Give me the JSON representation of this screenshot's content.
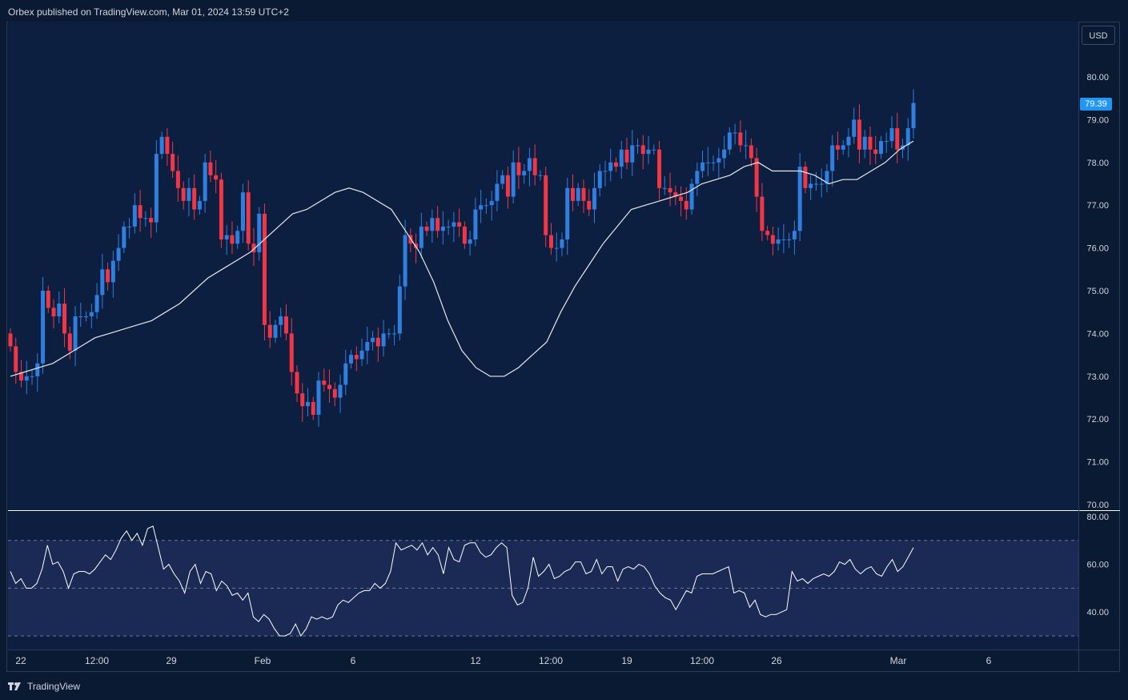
{
  "header": {
    "published": "Orbex published on TradingView.com, Mar 01, 2024 13:59 UTC+2"
  },
  "currency_button": "USD",
  "last_price_label": "79.39",
  "footer": {
    "brand": "TradingView"
  },
  "colors": {
    "up": "#2f7fe0",
    "down": "#f23645",
    "ma": "#e8e8e8",
    "rsi": "#ffffff",
    "background": "#0b1a33",
    "rsi_band": "#1a2a55"
  },
  "chart_data": [
    {
      "type": "candlestick",
      "series_name": "",
      "ylim": [
        70.0,
        80.0
      ],
      "y_ticks": [
        "80.00",
        "79.00",
        "78.00",
        "77.00",
        "76.00",
        "75.00",
        "74.00",
        "73.00",
        "72.00",
        "71.00",
        "70.00"
      ],
      "x_ticks": [
        "22",
        "12:00",
        "29",
        "Feb",
        "6",
        "12",
        "12:00",
        "19",
        "12:00",
        "26",
        "Mar",
        "6"
      ],
      "last_price": 79.39,
      "closes": [
        73.7,
        73.1,
        72.9,
        73.0,
        73.0,
        73.3,
        75.0,
        74.6,
        74.4,
        74.7,
        74.0,
        73.6,
        74.4,
        74.4,
        74.4,
        74.5,
        74.9,
        75.5,
        75.2,
        75.7,
        76.0,
        76.5,
        76.5,
        77.0,
        76.7,
        76.7,
        76.6,
        78.2,
        78.6,
        78.2,
        77.8,
        77.4,
        77.1,
        77.4,
        76.9,
        77.1,
        78.0,
        77.7,
        77.6,
        76.2,
        76.3,
        76.1,
        76.4,
        77.3,
        76.1,
        75.9,
        76.8,
        74.2,
        73.9,
        74.2,
        74.4,
        74.0,
        73.1,
        72.6,
        72.3,
        72.4,
        72.1,
        72.9,
        72.8,
        72.7,
        72.5,
        72.8,
        73.3,
        73.5,
        73.4,
        73.6,
        73.8,
        73.9,
        73.7,
        74.0,
        74.0,
        74.0,
        75.1,
        76.3,
        76.1,
        76.0,
        76.5,
        76.4,
        76.7,
        76.4,
        76.5,
        76.5,
        76.6,
        76.5,
        76.1,
        76.2,
        76.9,
        77.0,
        77.0,
        77.1,
        77.5,
        77.7,
        77.2,
        78.0,
        77.7,
        77.8,
        78.1,
        77.7,
        77.7,
        76.3,
        76.0,
        76.0,
        76.2,
        77.4,
        77.1,
        77.4,
        77.1,
        76.9,
        77.4,
        77.8,
        77.8,
        78.0,
        77.9,
        78.3,
        78.0,
        78.4,
        78.4,
        78.2,
        78.3,
        78.3,
        77.4,
        77.4,
        77.3,
        77.2,
        77.1,
        76.9,
        77.5,
        77.8,
        78.0,
        78.0,
        78.0,
        78.1,
        78.3,
        78.7,
        78.7,
        78.4,
        78.4,
        78.1,
        77.2,
        76.4,
        76.3,
        76.1,
        76.2,
        76.2,
        76.2,
        76.4,
        77.9,
        77.4,
        77.5,
        77.5,
        77.5,
        77.8,
        78.4,
        78.3,
        78.4,
        78.6,
        79.0,
        78.3,
        78.6,
        78.3,
        78.2,
        78.5,
        78.5,
        78.8,
        78.3,
        78.4,
        78.8,
        79.39
      ],
      "ma_type": "moving average",
      "ma": [
        73.0,
        73.1,
        73.2,
        73.3,
        73.5,
        73.7,
        73.9,
        74.0,
        74.1,
        74.2,
        74.3,
        74.5,
        74.7,
        75.0,
        75.3,
        75.5,
        75.7,
        75.9,
        76.2,
        76.5,
        76.8,
        76.9,
        77.1,
        77.3,
        77.4,
        77.3,
        77.1,
        76.9,
        76.4,
        75.9,
        75.2,
        74.3,
        73.6,
        73.2,
        73.0,
        73.0,
        73.2,
        73.5,
        73.8,
        74.5,
        75.1,
        75.6,
        76.1,
        76.5,
        76.9,
        77.0,
        77.1,
        77.2,
        77.3,
        77.5,
        77.6,
        77.7,
        77.9,
        78.0,
        77.8,
        77.8,
        77.8,
        77.7,
        77.5,
        77.6,
        77.6,
        77.8,
        78.0,
        78.3,
        78.5
      ]
    },
    {
      "type": "line",
      "series_name": "",
      "ylim": [
        27.0,
        80.0
      ],
      "y_ticks": [
        "80.00",
        "60.00",
        "40.00"
      ],
      "levels": [
        70,
        50,
        30
      ],
      "values": [
        57,
        52,
        54,
        50,
        50,
        52,
        58,
        68,
        60,
        61,
        57,
        50,
        56,
        57,
        57,
        56,
        58,
        61,
        64,
        62,
        66,
        71,
        74,
        70,
        73,
        68,
        75,
        76,
        67,
        58,
        60,
        56,
        53,
        48,
        57,
        60,
        52,
        57,
        56,
        49,
        53,
        51,
        47,
        48,
        45,
        48,
        38,
        36,
        39,
        37,
        33,
        30,
        30,
        31,
        35,
        30,
        33,
        38,
        37,
        38,
        37,
        38,
        43,
        45,
        44,
        46,
        48,
        49,
        49,
        52,
        50,
        52,
        57,
        69,
        66,
        67,
        68,
        66,
        69,
        64,
        67,
        64,
        56,
        67,
        62,
        61,
        68,
        69,
        69,
        65,
        63,
        64,
        67,
        69,
        67,
        47,
        43,
        44,
        50,
        63,
        55,
        57,
        60,
        54,
        55,
        57,
        58,
        61,
        61,
        56,
        57,
        62,
        56,
        59,
        59,
        53,
        58,
        59,
        58,
        60,
        59,
        56,
        51,
        48,
        46,
        45,
        41,
        45,
        49,
        48,
        55,
        56,
        56,
        56,
        57,
        58,
        59,
        48,
        49,
        48,
        42,
        45,
        39,
        38,
        39,
        39,
        40,
        41,
        57,
        53,
        54,
        52,
        54,
        55,
        56,
        55,
        57,
        61,
        60,
        62,
        58,
        56,
        58,
        59,
        56,
        55,
        59,
        62,
        57,
        59,
        63,
        67
      ]
    }
  ]
}
